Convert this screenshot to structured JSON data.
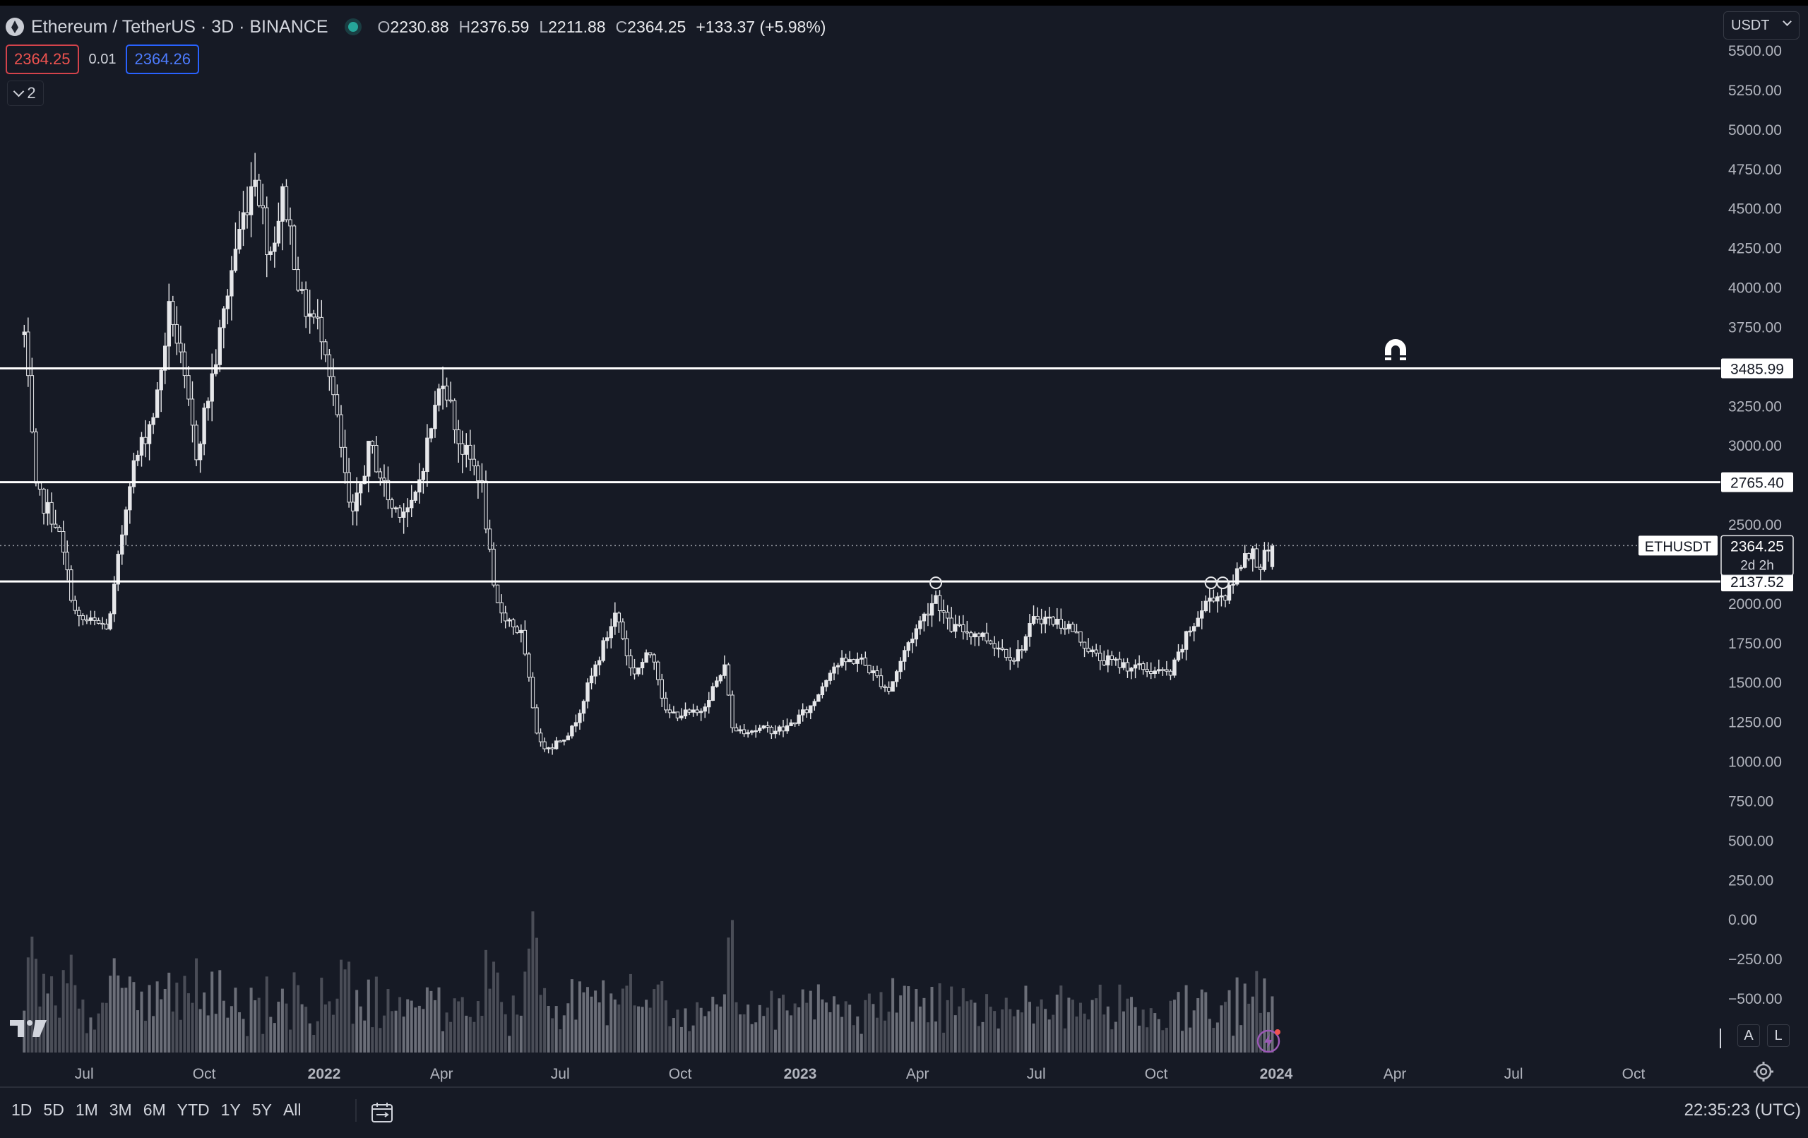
{
  "header": {
    "symbol": "Ethereum / TetherUS · 3D · BINANCE",
    "ohlc": [
      {
        "k": "O",
        "v": "2230.88"
      },
      {
        "k": "H",
        "v": "2376.59"
      },
      {
        "k": "L",
        "v": "2211.88"
      },
      {
        "k": "C",
        "v": "2364.25"
      }
    ],
    "change": "+133.37 (+5.98%)",
    "bid": "2364.25",
    "spread": "0.01",
    "ask": "2364.26",
    "collapsed_count": "2",
    "currency": "USDT"
  },
  "colors": {
    "background": "#161a25",
    "candle": "#e6e7ea",
    "volume": "#5d606b",
    "bid": "#ef5350",
    "ask": "#2962ff",
    "live": "#26a69a"
  },
  "toolbar": {
    "ranges": [
      "1D",
      "5D",
      "1M",
      "3M",
      "6M",
      "YTD",
      "1Y",
      "5Y",
      "All"
    ],
    "clock": "22:35:23 (UTC)",
    "auto_label": "A",
    "log_label": "L"
  },
  "icons": [
    "ethereum-icon",
    "live-status-icon",
    "magnet-icon",
    "calendar-range-icon",
    "settings-gear-icon",
    "flash-icon",
    "tradingview-logo"
  ],
  "chart_data": {
    "type": "candlestick",
    "interval": "3D",
    "ylim": [
      -700,
      5600
    ],
    "y_ticks": [
      "5500.00",
      "5250.00",
      "5000.00",
      "4750.00",
      "4500.00",
      "4250.00",
      "4000.00",
      "3750.00",
      "3500.00",
      "3250.00",
      "3000.00",
      "2750.00",
      "2500.00",
      "2250.00",
      "2000.00",
      "1750.00",
      "1500.00",
      "1250.00",
      "1000.00",
      "750.00",
      "500.00",
      "250.00",
      "0.00",
      "−250.00",
      "−500.00"
    ],
    "x_ticks": [
      {
        "label": "Jul",
        "date": "2021-07-01",
        "bold": false
      },
      {
        "label": "Oct",
        "date": "2021-10-01",
        "bold": false
      },
      {
        "label": "2022",
        "date": "2022-01-01",
        "bold": true
      },
      {
        "label": "Apr",
        "date": "2022-04-01",
        "bold": false
      },
      {
        "label": "Jul",
        "date": "2022-07-01",
        "bold": false
      },
      {
        "label": "Oct",
        "date": "2022-10-01",
        "bold": false
      },
      {
        "label": "2023",
        "date": "2023-01-01",
        "bold": true
      },
      {
        "label": "Apr",
        "date": "2023-04-01",
        "bold": false
      },
      {
        "label": "Jul",
        "date": "2023-07-01",
        "bold": false
      },
      {
        "label": "Oct",
        "date": "2023-10-01",
        "bold": false
      },
      {
        "label": "2024",
        "date": "2024-01-01",
        "bold": true
      },
      {
        "label": "Apr",
        "date": "2024-04-01",
        "bold": false
      },
      {
        "label": "Jul",
        "date": "2024-07-01",
        "bold": false
      },
      {
        "label": "Oct",
        "date": "2024-10-01",
        "bold": false
      }
    ],
    "horizontal_lines": [
      {
        "label": "3485.99",
        "value": 3485.99
      },
      {
        "label": "2765.40",
        "value": 2765.4
      },
      {
        "label": "2137.52",
        "value": 2137.52
      }
    ],
    "last_price": {
      "symbol": "ETHUSDT",
      "value": "2364.25",
      "countdown": "2d 2h"
    },
    "touch_markers": [
      {
        "date": "2023-04-15",
        "value": 2137.52
      },
      {
        "date": "2023-11-12",
        "value": 2137.52
      },
      {
        "date": "2023-11-21",
        "value": 2137.52
      }
    ],
    "price_path": [
      {
        "date": "2021-05-16",
        "close": 3700
      },
      {
        "date": "2021-05-25",
        "close": 2700
      },
      {
        "date": "2021-06-10",
        "close": 2500
      },
      {
        "date": "2021-06-25",
        "close": 1900
      },
      {
        "date": "2021-07-20",
        "close": 1850
      },
      {
        "date": "2021-08-05",
        "close": 2800
      },
      {
        "date": "2021-08-25",
        "close": 3250
      },
      {
        "date": "2021-09-05",
        "close": 3900
      },
      {
        "date": "2021-09-25",
        "close": 2950
      },
      {
        "date": "2021-10-10",
        "close": 3550
      },
      {
        "date": "2021-10-25",
        "close": 4250
      },
      {
        "date": "2021-11-09",
        "close": 4750
      },
      {
        "date": "2021-11-20",
        "close": 4200
      },
      {
        "date": "2021-12-01",
        "close": 4600
      },
      {
        "date": "2021-12-15",
        "close": 3900
      },
      {
        "date": "2022-01-01",
        "close": 3700
      },
      {
        "date": "2022-01-10",
        "close": 3200
      },
      {
        "date": "2022-01-22",
        "close": 2500
      },
      {
        "date": "2022-02-05",
        "close": 3000
      },
      {
        "date": "2022-02-22",
        "close": 2600
      },
      {
        "date": "2022-03-10",
        "close": 2600
      },
      {
        "date": "2022-04-02",
        "close": 3450
      },
      {
        "date": "2022-04-15",
        "close": 3000
      },
      {
        "date": "2022-05-01",
        "close": 2800
      },
      {
        "date": "2022-05-12",
        "close": 2000
      },
      {
        "date": "2022-06-01",
        "close": 1800
      },
      {
        "date": "2022-06-15",
        "close": 1100
      },
      {
        "date": "2022-06-25",
        "close": 1100
      },
      {
        "date": "2022-07-10",
        "close": 1200
      },
      {
        "date": "2022-08-13",
        "close": 1950
      },
      {
        "date": "2022-08-25",
        "close": 1550
      },
      {
        "date": "2022-09-10",
        "close": 1700
      },
      {
        "date": "2022-09-20",
        "close": 1300
      },
      {
        "date": "2022-10-15",
        "close": 1300
      },
      {
        "date": "2022-11-05",
        "close": 1600
      },
      {
        "date": "2022-11-10",
        "close": 1200
      },
      {
        "date": "2022-12-20",
        "close": 1200
      },
      {
        "date": "2023-01-10",
        "close": 1350
      },
      {
        "date": "2023-01-25",
        "close": 1600
      },
      {
        "date": "2023-02-15",
        "close": 1650
      },
      {
        "date": "2023-03-10",
        "close": 1450
      },
      {
        "date": "2023-03-25",
        "close": 1750
      },
      {
        "date": "2023-04-15",
        "close": 2050
      },
      {
        "date": "2023-04-25",
        "close": 1850
      },
      {
        "date": "2023-05-20",
        "close": 1800
      },
      {
        "date": "2023-06-15",
        "close": 1650
      },
      {
        "date": "2023-07-01",
        "close": 1920
      },
      {
        "date": "2023-07-25",
        "close": 1860
      },
      {
        "date": "2023-08-17",
        "close": 1650
      },
      {
        "date": "2023-09-10",
        "close": 1600
      },
      {
        "date": "2023-10-12",
        "close": 1550
      },
      {
        "date": "2023-10-25",
        "close": 1800
      },
      {
        "date": "2023-11-12",
        "close": 2050
      },
      {
        "date": "2023-11-25",
        "close": 2050
      },
      {
        "date": "2023-12-09",
        "close": 2350
      },
      {
        "date": "2023-12-20",
        "close": 2250
      },
      {
        "date": "2023-12-30",
        "close": 2364.25
      }
    ]
  }
}
